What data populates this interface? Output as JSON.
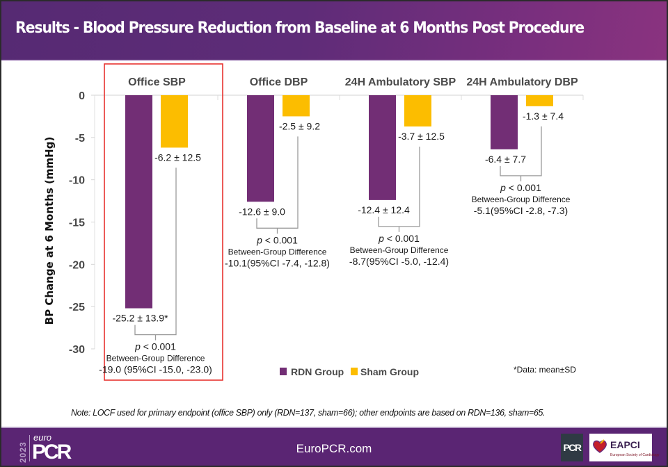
{
  "title": "Results - Blood Pressure Reduction from Baseline at 6 Months Post Procedure",
  "chart_data": {
    "type": "bar",
    "title": "Results - Blood Pressure Reduction from Baseline at 6 Months Post Procedure",
    "xlabel": "",
    "ylabel": "BP Change at 6 Months (mmHg)",
    "ylim": [
      -30,
      0
    ],
    "yticks": [
      0,
      -5,
      -10,
      -15,
      -20,
      -25,
      -30
    ],
    "ytick_labels": [
      "0",
      "-5",
      "-10",
      "-15",
      "-20",
      "-25",
      "-30"
    ],
    "grid": false,
    "categories": [
      "Office SBP",
      "Office DBP",
      "24H Ambulatory SBP",
      "24H Ambulatory DBP"
    ],
    "series": [
      {
        "name": "RDN Group",
        "color": "#722e75",
        "values": [
          -25.2,
          -12.6,
          -12.4,
          -6.4
        ],
        "labels": [
          "-25.2 ± 13.9*",
          "-12.6 ± 9.0",
          "-12.4 ± 12.4",
          "-6.4 ± 7.7"
        ]
      },
      {
        "name": "Sham Group",
        "color": "#fcbd00",
        "values": [
          -6.2,
          -2.5,
          -3.7,
          -1.3
        ],
        "labels": [
          "-6.2 ± 12.5",
          "-2.5 ± 9.2",
          "-3.7 ± 12.5",
          "-1.3 ± 7.4"
        ]
      }
    ],
    "annotations": [
      {
        "p": "p < 0.001",
        "heading": "Between-Group Difference",
        "difference": "-19.0 (95%CI -15.0, -23.0)"
      },
      {
        "p": "p < 0.001",
        "heading": "Between-Group Difference",
        "difference": "-10.1(95%CI -7.4, -12.8)"
      },
      {
        "p": "p < 0.001",
        "heading": "Between-Group Difference",
        "difference": "-8.7(95%CI -5.0, -12.4)"
      },
      {
        "p": "p < 0.001",
        "heading": "Between-Group Difference",
        "difference": "-5.1(95%CI -2.8, -7.3)"
      }
    ],
    "highlighted_category": "Office SBP",
    "highlight_color": "#e8322f",
    "legend": {
      "placement": "bottom",
      "entries": [
        "RDN Group",
        "Sham Group"
      ]
    },
    "data_note": "*Data: mean±SD"
  },
  "note": "Note: LOCF used for primary endpoint (office SBP) only (RDN=137, sham=66); other endpoints are based on RDN=136, sham=65.",
  "footer": {
    "url": "EuroPCR.com",
    "logo_year": "2023",
    "logo_euro": "euro",
    "logo_pcr": "PCR",
    "partner_logo_pcr": "PCR",
    "partner_logo_eapci": "EAPCI",
    "partner_logo_eapci_sub": "European Society of Cardiology"
  }
}
